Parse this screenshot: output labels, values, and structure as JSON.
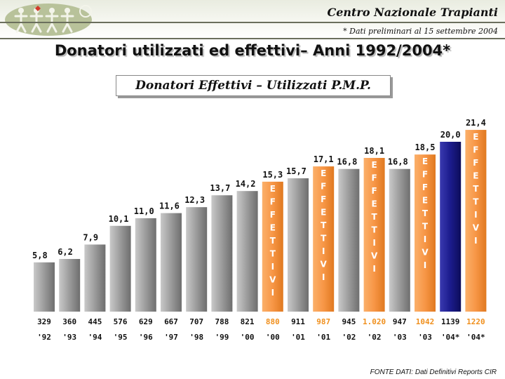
{
  "header": {
    "title": "Centro Nazionale Trapianti",
    "subtitle": "* Dati preliminari al 15 settembre 2004"
  },
  "main_title": "Donatori utilizzati ed effettivi– Anni 1992/2004*",
  "colors": {
    "gray_bar": "#9b9b9b",
    "orange_bar": "#f79646",
    "dark_bar": "#1b1b8c",
    "orange_text": "#f0901e",
    "header_rule": "#6b6f5d"
  },
  "chart_data": {
    "type": "bar",
    "title": "Donatori Effettivi – Utilizzati P.M.P.",
    "bar_inner_label": "EFFETTIVI",
    "bars": [
      {
        "year": "'92",
        "count": "329",
        "value": 5.8,
        "value_label": "5,8",
        "kind": "gray"
      },
      {
        "year": "'93",
        "count": "360",
        "value": 6.2,
        "value_label": "6,2",
        "kind": "gray"
      },
      {
        "year": "'94",
        "count": "445",
        "value": 7.9,
        "value_label": "7,9",
        "kind": "gray"
      },
      {
        "year": "'95",
        "count": "576",
        "value": 10.1,
        "value_label": "10,1",
        "kind": "gray"
      },
      {
        "year": "'96",
        "count": "629",
        "value": 11.0,
        "value_label": "11,0",
        "kind": "gray"
      },
      {
        "year": "'97",
        "count": "667",
        "value": 11.6,
        "value_label": "11,6",
        "kind": "gray"
      },
      {
        "year": "'98",
        "count": "707",
        "value": 12.3,
        "value_label": "12,3",
        "kind": "gray"
      },
      {
        "year": "'99",
        "count": "788",
        "value": 13.7,
        "value_label": "13,7",
        "kind": "gray"
      },
      {
        "year": "'00",
        "count": "821",
        "value": 14.2,
        "value_label": "14,2",
        "kind": "gray"
      },
      {
        "year": "'00",
        "count": "880",
        "value": 15.3,
        "value_label": "15,3",
        "kind": "orange"
      },
      {
        "year": "'01",
        "count": "911",
        "value": 15.7,
        "value_label": "15,7",
        "kind": "gray"
      },
      {
        "year": "'01",
        "count": "987",
        "value": 17.1,
        "value_label": "17,1",
        "kind": "orange"
      },
      {
        "year": "'02",
        "count": "945",
        "value": 16.8,
        "value_label": "16,8",
        "kind": "gray"
      },
      {
        "year": "'02",
        "count": "1.020",
        "value": 18.1,
        "value_label": "18,1",
        "kind": "orange"
      },
      {
        "year": "'03",
        "count": "947",
        "value": 16.8,
        "value_label": "16,8",
        "kind": "gray"
      },
      {
        "year": "'03",
        "count": "1042",
        "value": 18.5,
        "value_label": "18,5",
        "kind": "orange"
      },
      {
        "year": "'04*",
        "count": "1139",
        "value": 20.0,
        "value_label": "20,0",
        "kind": "dark"
      },
      {
        "year": "'04*",
        "count": "1220",
        "value": 21.4,
        "value_label": "21,4",
        "kind": "orange"
      }
    ]
  },
  "footer": "FONTE DATI: Dati Definitivi Reports CIR"
}
